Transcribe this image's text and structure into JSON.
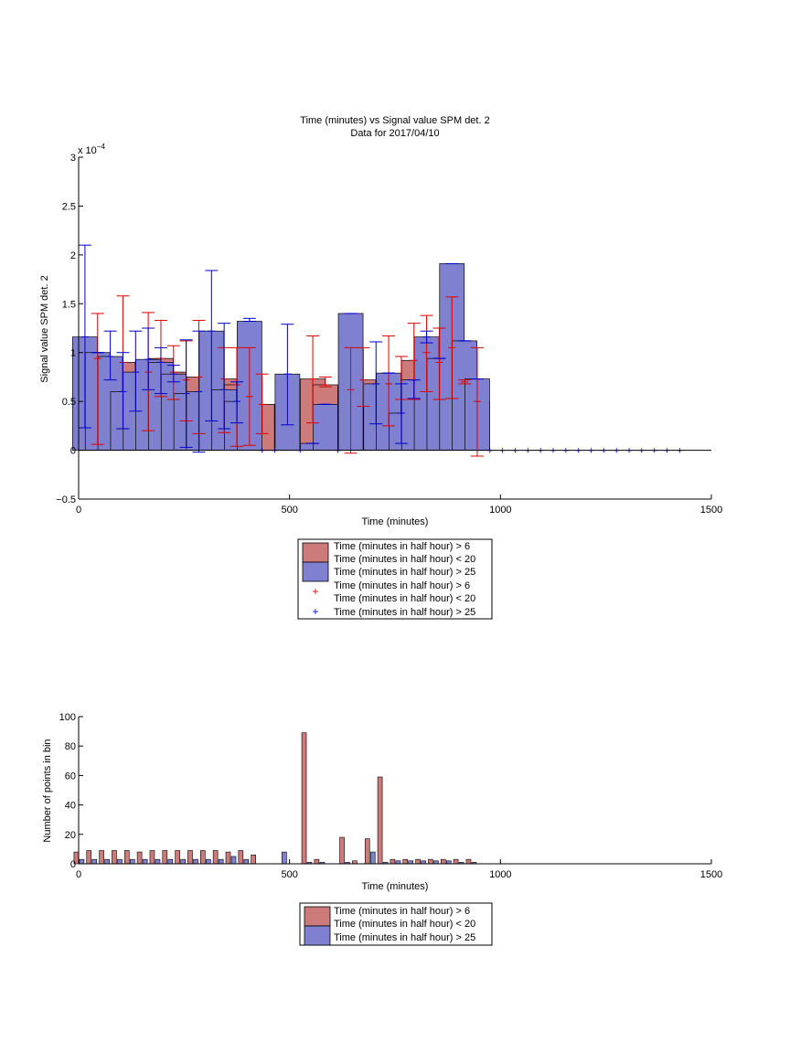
{
  "colors": {
    "red_bar": "#cc7a7a",
    "blue_bar": "#8080d0",
    "red_err": "#dd0000",
    "blue_err": "#0000cc",
    "axis": "#000000"
  },
  "chart_data": [
    {
      "type": "bar",
      "title": "Time (minutes) vs Signal value SPM det. 2",
      "subtitle": "Data for 2017/04/10",
      "xlabel": "Time (minutes)",
      "ylabel": "Signal value SPM det. 2",
      "xlim": [
        0,
        1500
      ],
      "ylim": [
        -0.5,
        3
      ],
      "y_exponent": "x 10",
      "y_exponent_power": "−4",
      "xticks": [
        "0",
        "500",
        "1000",
        "1500"
      ],
      "yticks": [
        "−0.5",
        "0",
        "0.5",
        "1",
        "1.5",
        "2",
        "2.5",
        "3"
      ],
      "grid": false,
      "legend_position": "below",
      "legend": [
        "Time (minutes in half hour) > 6",
        "Time (minutes in half hour) < 20",
        "Time (minutes in half hour) > 25",
        "Time (minutes in half hour) > 6",
        "Time (minutes in half hour) < 20",
        "Time (minutes in half hour) > 25"
      ],
      "series": [
        {
          "color": "red",
          "x": [
            45,
            105,
            165,
            195,
            225,
            255,
            285,
            345,
            375,
            405,
            435,
            555,
            585,
            645,
            675,
            735,
            765,
            795,
            825,
            855,
            885,
            915,
            945
          ],
          "values": [
            0.94,
            0.9,
            0.8,
            0.94,
            0.8,
            0.72,
            0.75,
            0.73,
            0.67,
            0.55,
            0.47,
            0.73,
            0.67,
            0.62,
            0.72,
            0.68,
            0.52,
            0.92,
            1.0,
            0.9,
            1.05,
            0.7,
            0.5
          ],
          "err_low": [
            0.06,
            0.22,
            0.2,
            0.55,
            0.52,
            0.3,
            0.17,
            0.18,
            0.04,
            0.05,
            0.17,
            0.28,
            0.65,
            -0.03,
            0.45,
            0.25,
            0.52,
            0.52,
            0.6,
            0.52,
            0.53,
            0.68,
            -0.06
          ],
          "err_high": [
            1.4,
            1.58,
            1.41,
            1.33,
            1.07,
            1.12,
            1.33,
            1.05,
            1.05,
            1.05,
            0.78,
            1.17,
            0.75,
            1.05,
            1.05,
            1.17,
            0.96,
            1.3,
            1.38,
            1.25,
            1.57,
            0.72,
            1.05
          ]
        },
        {
          "color": "blue",
          "x": [
            15,
            45,
            75,
            105,
            135,
            165,
            195,
            225,
            255,
            285,
            315,
            345,
            375,
            405,
            495,
            555,
            585,
            645,
            705,
            735,
            765,
            795,
            825,
            855,
            885,
            915,
            945
          ],
          "values": [
            1.16,
            1.0,
            0.96,
            0.6,
            0.8,
            0.93,
            0.9,
            0.78,
            0.58,
            0.6,
            1.22,
            0.62,
            0.5,
            1.32,
            0.78,
            0.07,
            0.47,
            1.4,
            0.68,
            0.79,
            0.38,
            0.72,
            1.16,
            0.94,
            1.91,
            1.12,
            0.73
          ],
          "err_low": [
            0.23,
            1.0,
            0.72,
            0.22,
            0.4,
            0.62,
            0.58,
            0.7,
            0.03,
            -0.02,
            0.3,
            0.22,
            0.28,
            1.32,
            0.26,
            0.07,
            0.47,
            1.4,
            0.27,
            0.79,
            0.07,
            0.53,
            1.1,
            0.94,
            1.91,
            1.12,
            0.73
          ],
          "err_high": [
            2.1,
            1.0,
            1.22,
            1.0,
            1.22,
            1.25,
            1.05,
            0.87,
            1.13,
            1.22,
            1.84,
            1.3,
            0.7,
            1.35,
            1.29,
            0.07,
            0.47,
            1.4,
            1.11,
            0.79,
            0.68,
            0.72,
            1.22,
            0.94,
            1.91,
            1.12,
            0.73
          ]
        },
        {
          "color": "blue",
          "marker": "+",
          "x": [
            435,
            465,
            525,
            615,
            975,
            1005,
            1035,
            1065,
            1095,
            1125,
            1155,
            1185,
            1215,
            1245,
            1275,
            1305,
            1335,
            1365,
            1395,
            1425
          ],
          "values": [
            0,
            0,
            0,
            0,
            0,
            0,
            0,
            0,
            0,
            0,
            0,
            0,
            0,
            0,
            0,
            0,
            0,
            0,
            0,
            0
          ]
        }
      ]
    },
    {
      "type": "bar",
      "title": "",
      "xlabel": "Time (minutes)",
      "ylabel": "Number of points in bin",
      "xlim": [
        0,
        1500
      ],
      "ylim": [
        0,
        100
      ],
      "xticks": [
        "0",
        "500",
        "1000",
        "1500"
      ],
      "yticks": [
        "0",
        "20",
        "40",
        "60",
        "80",
        "100"
      ],
      "grid": false,
      "legend_position": "below",
      "legend": [
        "Time (minutes in half hour) > 6",
        "Time (minutes in half hour) < 20",
        "Time (minutes in half hour) > 25"
      ],
      "series": [
        {
          "color": "red",
          "x": [
            15,
            45,
            75,
            105,
            135,
            165,
            195,
            225,
            255,
            285,
            315,
            345,
            375,
            405,
            435,
            555,
            585,
            645,
            675,
            705,
            735,
            765,
            795,
            825,
            855,
            885,
            915,
            945
          ],
          "values": [
            8,
            9,
            9,
            9,
            9,
            8,
            9,
            9,
            9,
            9,
            9,
            9,
            8,
            9,
            6,
            89,
            3,
            18,
            2,
            17,
            59,
            3,
            3,
            3,
            3,
            3,
            3,
            3
          ]
        },
        {
          "color": "blue",
          "x": [
            15,
            45,
            75,
            105,
            135,
            165,
            195,
            225,
            255,
            285,
            315,
            345,
            375,
            405,
            495,
            555,
            585,
            645,
            705,
            735,
            765,
            795,
            825,
            855,
            885,
            915,
            945
          ],
          "values": [
            3,
            3,
            3,
            3,
            3,
            3,
            3,
            3,
            3,
            3,
            3,
            3,
            5,
            3,
            8,
            1,
            1,
            1,
            8,
            1,
            2,
            2,
            2,
            2,
            2,
            1,
            1
          ]
        }
      ]
    }
  ]
}
